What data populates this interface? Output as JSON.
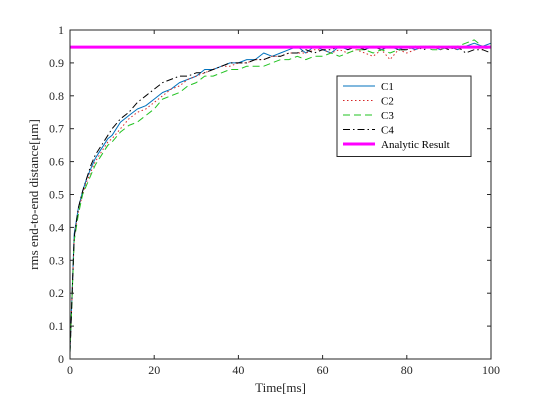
{
  "chart_data": {
    "type": "line",
    "title": "",
    "xlabel": "Time[ms]",
    "ylabel": "rms end-to-end distance[μm]",
    "xlim": [
      0,
      100
    ],
    "ylim": [
      0,
      1
    ],
    "xticks": [
      "0",
      "20",
      "40",
      "60",
      "80",
      "100"
    ],
    "yticks": [
      "0",
      "0.1",
      "0.2",
      "0.3",
      "0.4",
      "0.5",
      "0.6",
      "0.7",
      "0.8",
      "0.9",
      "1"
    ],
    "grid": false,
    "legend_position": "upper-right",
    "series": [
      {
        "name": "C1",
        "color": "#0072BD",
        "style": "solid",
        "x": [
          0,
          1,
          2,
          3,
          4,
          5,
          6,
          7,
          8,
          9,
          10,
          12,
          14,
          16,
          18,
          20,
          22,
          24,
          26,
          28,
          30,
          32,
          34,
          36,
          38,
          40,
          42,
          44,
          46,
          48,
          50,
          52,
          54,
          56,
          58,
          60,
          62,
          64,
          66,
          68,
          70,
          72,
          74,
          76,
          78,
          80,
          82,
          84,
          86,
          88,
          90,
          92,
          94,
          96,
          98,
          100
        ],
        "y": [
          0.02,
          0.38,
          0.46,
          0.51,
          0.55,
          0.58,
          0.61,
          0.63,
          0.65,
          0.67,
          0.68,
          0.72,
          0.74,
          0.76,
          0.77,
          0.79,
          0.81,
          0.82,
          0.84,
          0.85,
          0.86,
          0.88,
          0.88,
          0.89,
          0.9,
          0.9,
          0.91,
          0.91,
          0.93,
          0.92,
          0.93,
          0.94,
          0.95,
          0.93,
          0.95,
          0.94,
          0.93,
          0.95,
          0.94,
          0.95,
          0.94,
          0.95,
          0.94,
          0.95,
          0.94,
          0.95,
          0.94,
          0.95,
          0.95,
          0.94,
          0.95,
          0.94,
          0.95,
          0.96,
          0.95,
          0.96
        ]
      },
      {
        "name": "C2",
        "color": "#D62728",
        "style": "dotted",
        "x": [
          0,
          1,
          2,
          3,
          4,
          5,
          6,
          7,
          8,
          9,
          10,
          12,
          14,
          16,
          18,
          20,
          22,
          24,
          26,
          28,
          30,
          32,
          34,
          36,
          38,
          40,
          42,
          44,
          46,
          48,
          50,
          52,
          54,
          56,
          58,
          60,
          62,
          64,
          66,
          68,
          70,
          72,
          74,
          76,
          78,
          80,
          82,
          84,
          86,
          88,
          90,
          92,
          94,
          96,
          98,
          100
        ],
        "y": [
          0.02,
          0.37,
          0.45,
          0.5,
          0.54,
          0.57,
          0.6,
          0.62,
          0.64,
          0.66,
          0.67,
          0.7,
          0.73,
          0.75,
          0.76,
          0.78,
          0.8,
          0.82,
          0.83,
          0.85,
          0.86,
          0.87,
          0.88,
          0.89,
          0.89,
          0.9,
          0.9,
          0.91,
          0.91,
          0.92,
          0.92,
          0.93,
          0.93,
          0.93,
          0.94,
          0.94,
          0.93,
          0.94,
          0.93,
          0.94,
          0.93,
          0.92,
          0.94,
          0.91,
          0.94,
          0.93,
          0.94,
          0.95,
          0.95,
          0.94,
          0.95,
          0.94,
          0.95,
          0.95,
          0.94,
          0.95
        ]
      },
      {
        "name": "C3",
        "color": "#22C322",
        "style": "dashed",
        "x": [
          0,
          1,
          2,
          3,
          4,
          5,
          6,
          7,
          8,
          9,
          10,
          12,
          14,
          16,
          18,
          20,
          22,
          24,
          26,
          28,
          30,
          32,
          34,
          36,
          38,
          40,
          42,
          44,
          46,
          48,
          50,
          52,
          54,
          56,
          58,
          60,
          62,
          64,
          66,
          68,
          70,
          72,
          74,
          76,
          78,
          80,
          82,
          84,
          86,
          88,
          90,
          92,
          94,
          96,
          98,
          100
        ],
        "y": [
          0.02,
          0.36,
          0.44,
          0.5,
          0.53,
          0.56,
          0.59,
          0.61,
          0.63,
          0.65,
          0.66,
          0.69,
          0.71,
          0.72,
          0.74,
          0.76,
          0.79,
          0.8,
          0.81,
          0.83,
          0.84,
          0.86,
          0.86,
          0.87,
          0.88,
          0.88,
          0.89,
          0.89,
          0.89,
          0.9,
          0.91,
          0.91,
          0.92,
          0.91,
          0.92,
          0.92,
          0.93,
          0.92,
          0.93,
          0.94,
          0.94,
          0.93,
          0.94,
          0.93,
          0.94,
          0.94,
          0.95,
          0.95,
          0.94,
          0.94,
          0.95,
          0.95,
          0.96,
          0.97,
          0.95,
          0.94
        ]
      },
      {
        "name": "C4",
        "color": "#000000",
        "style": "dashdot",
        "x": [
          0,
          1,
          2,
          3,
          4,
          5,
          6,
          7,
          8,
          9,
          10,
          12,
          14,
          16,
          18,
          20,
          22,
          24,
          26,
          28,
          30,
          32,
          34,
          36,
          38,
          40,
          42,
          44,
          46,
          48,
          50,
          52,
          54,
          56,
          58,
          60,
          62,
          64,
          66,
          68,
          70,
          72,
          74,
          76,
          78,
          80,
          82,
          84,
          86,
          88,
          90,
          92,
          94,
          96,
          98,
          100
        ],
        "y": [
          0.02,
          0.37,
          0.46,
          0.51,
          0.55,
          0.59,
          0.62,
          0.64,
          0.66,
          0.68,
          0.7,
          0.73,
          0.75,
          0.78,
          0.8,
          0.82,
          0.84,
          0.85,
          0.86,
          0.86,
          0.87,
          0.87,
          0.88,
          0.89,
          0.9,
          0.9,
          0.9,
          0.91,
          0.91,
          0.92,
          0.92,
          0.93,
          0.93,
          0.94,
          0.93,
          0.94,
          0.94,
          0.95,
          0.94,
          0.95,
          0.94,
          0.95,
          0.94,
          0.95,
          0.94,
          0.94,
          0.95,
          0.94,
          0.95,
          0.95,
          0.94,
          0.95,
          0.93,
          0.94,
          0.94,
          0.93
        ]
      },
      {
        "name": "Analytic Result",
        "color": "#FF00FF",
        "style": "solid-thick",
        "x": [
          0,
          100
        ],
        "y": [
          0.948,
          0.948
        ]
      }
    ]
  }
}
